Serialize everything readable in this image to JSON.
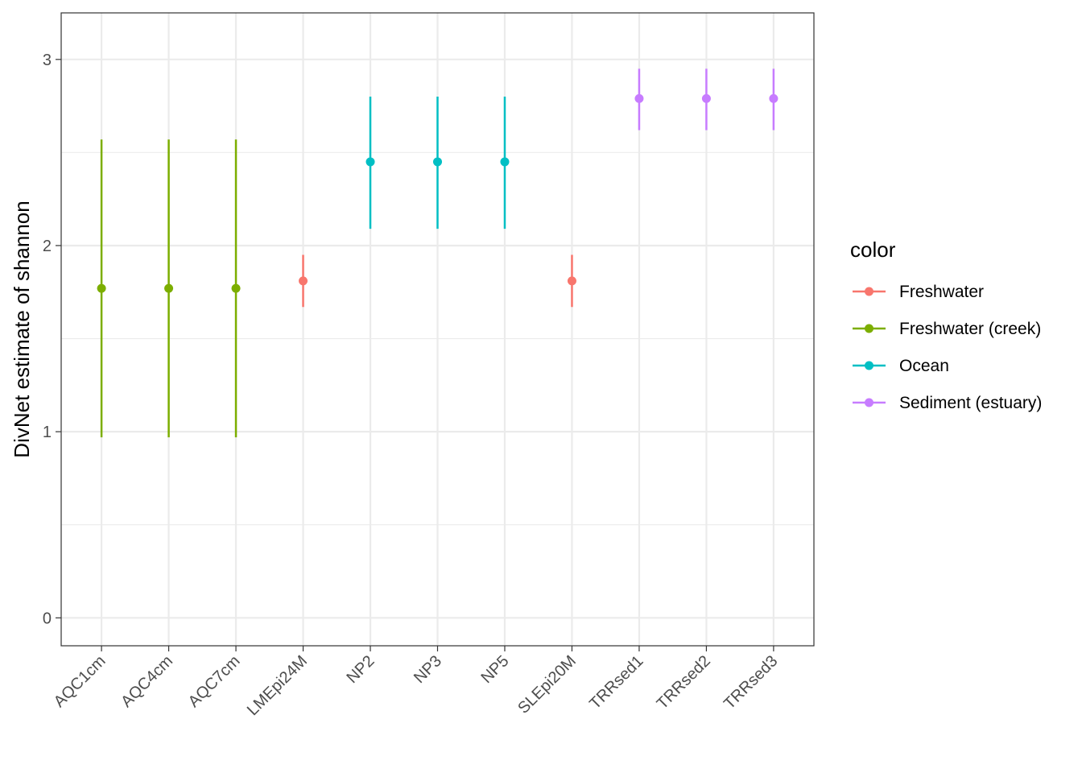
{
  "chart_data": {
    "type": "scatter",
    "title": "",
    "xlabel": "",
    "ylabel": "DivNet estimate of shannon",
    "ylim": [
      -0.15,
      3.25
    ],
    "yticks": [
      0,
      1,
      2,
      3
    ],
    "grid": true,
    "legend_position": "right",
    "legend_title": "color",
    "categories": [
      "AQC1cm",
      "AQC4cm",
      "AQC7cm",
      "LMEpi24M",
      "NP2",
      "NP3",
      "NP5",
      "SLEpi20M",
      "TRRsed1",
      "TRRsed2",
      "TRRsed3"
    ],
    "series": [
      {
        "name": "Freshwater",
        "color": "#F8766D",
        "points": [
          {
            "x": "LMEpi24M",
            "y": 1.81,
            "lower": 1.67,
            "upper": 1.95
          },
          {
            "x": "SLEpi20M",
            "y": 1.81,
            "lower": 1.67,
            "upper": 1.95
          }
        ]
      },
      {
        "name": "Freshwater (creek)",
        "color": "#7CAE00",
        "points": [
          {
            "x": "AQC1cm",
            "y": 1.77,
            "lower": 0.97,
            "upper": 2.57
          },
          {
            "x": "AQC4cm",
            "y": 1.77,
            "lower": 0.97,
            "upper": 2.57
          },
          {
            "x": "AQC7cm",
            "y": 1.77,
            "lower": 0.97,
            "upper": 2.57
          }
        ]
      },
      {
        "name": "Ocean",
        "color": "#00BFC4",
        "points": [
          {
            "x": "NP2",
            "y": 2.45,
            "lower": 2.09,
            "upper": 2.8
          },
          {
            "x": "NP3",
            "y": 2.45,
            "lower": 2.09,
            "upper": 2.8
          },
          {
            "x": "NP5",
            "y": 2.45,
            "lower": 2.09,
            "upper": 2.8
          }
        ]
      },
      {
        "name": "Sediment (estuary)",
        "color": "#C77CFF",
        "points": [
          {
            "x": "TRRsed1",
            "y": 2.79,
            "lower": 2.62,
            "upper": 2.95
          },
          {
            "x": "TRRsed2",
            "y": 2.79,
            "lower": 2.62,
            "upper": 2.95
          },
          {
            "x": "TRRsed3",
            "y": 2.79,
            "lower": 2.62,
            "upper": 2.95
          }
        ]
      }
    ]
  }
}
